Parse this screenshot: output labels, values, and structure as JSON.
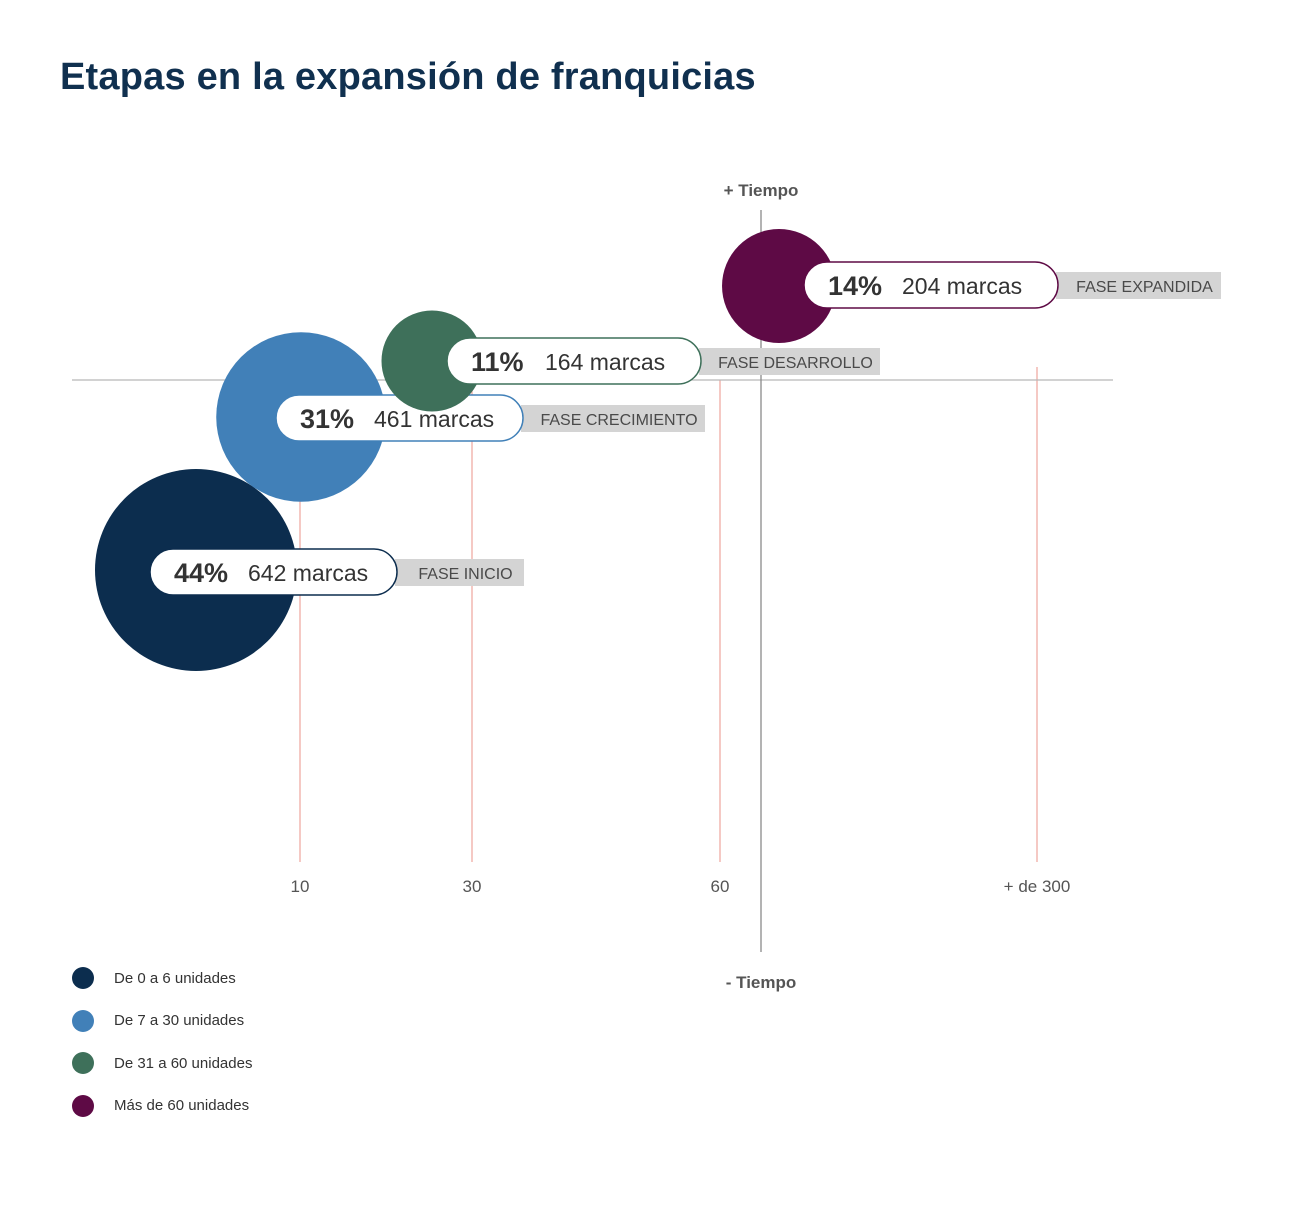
{
  "title": "Etapas en la expansión de franquicias",
  "chart_data": {
    "type": "bubble",
    "x_ticks": [
      "10",
      "30",
      "60",
      "+ de 300"
    ],
    "y_axis_top_label": "+ Tiempo",
    "y_axis_bottom_label": "- Tiempo",
    "grid": "vertical",
    "legend_position": "bottom-left",
    "series": [
      {
        "percent": "44%",
        "count": "642 marcas",
        "phase": "FASE INICIO",
        "legend": "De 0 a 6 unidades",
        "color": "#0c2d4e",
        "share": 44,
        "brands": 642
      },
      {
        "percent": "31%",
        "count": "461 marcas",
        "phase": "FASE CRECIMIENTO",
        "legend": "De 7 a 30 unidades",
        "color": "#4180b8",
        "share": 31,
        "brands": 461
      },
      {
        "percent": "11%",
        "count": "164 marcas",
        "phase": "FASE DESARROLLO",
        "legend": "De 31 a 60 unidades",
        "color": "#3e705a",
        "share": 11,
        "brands": 164
      },
      {
        "percent": "14%",
        "count": "204 marcas",
        "phase": "FASE EXPANDIDA",
        "legend": "Más de 60 unidades",
        "color": "#5e0a45",
        "share": 14,
        "brands": 204
      }
    ]
  }
}
